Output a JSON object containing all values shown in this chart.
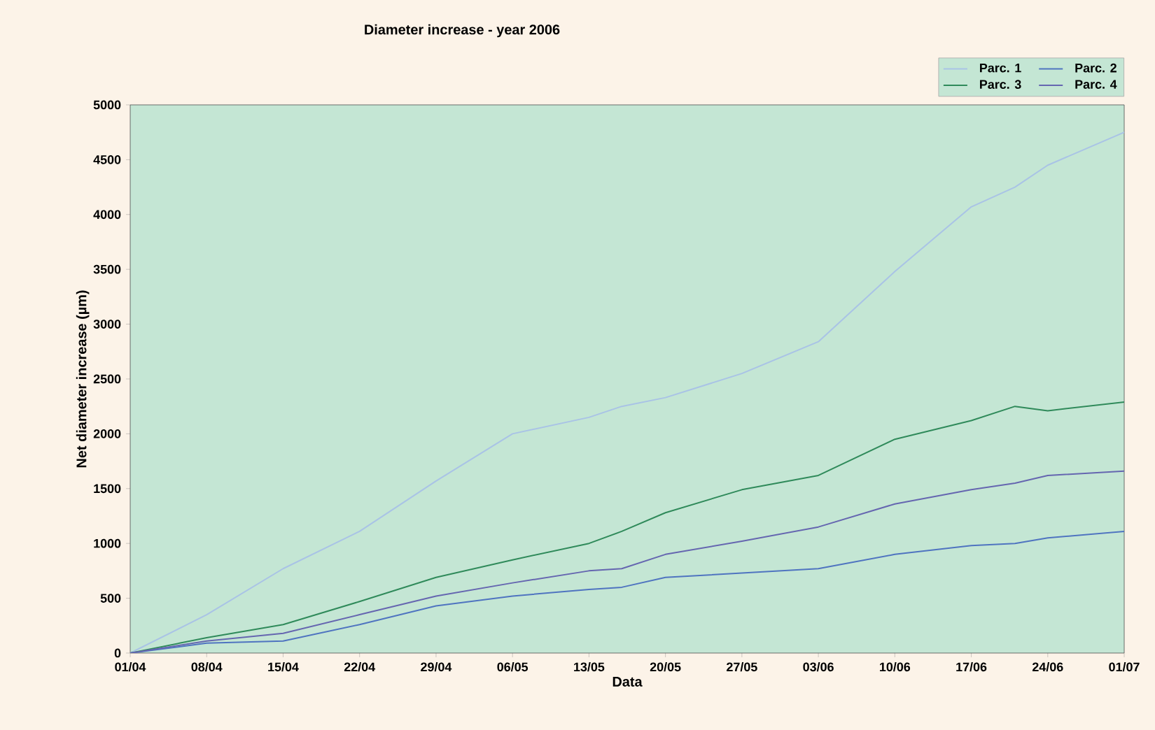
{
  "chart_data": {
    "type": "line",
    "title": "Diameter increase - year 2006",
    "xlabel": "Data",
    "ylabel": "Net diameter increase (µm)",
    "x": [
      "2006-04-01",
      "2006-04-08",
      "2006-04-15",
      "2006-04-22",
      "2006-04-29",
      "2006-05-06",
      "2006-05-13",
      "2006-05-16",
      "2006-05-20",
      "2006-05-27",
      "2006-06-03",
      "2006-06-10",
      "2006-06-17",
      "2006-06-21",
      "2006-06-24",
      "2006-07-01"
    ],
    "series": [
      {
        "name": "Parc. 1",
        "color": "#a9c3e6",
        "values": [
          0,
          350,
          770,
          1110,
          1570,
          2000,
          2150,
          2250,
          2330,
          2550,
          2840,
          3480,
          4070,
          4250,
          4450,
          4750
        ]
      },
      {
        "name": "Parc. 2",
        "color": "#4f74c0",
        "values": [
          0,
          90,
          110,
          260,
          430,
          520,
          580,
          600,
          690,
          730,
          770,
          900,
          980,
          1000,
          1050,
          1110
        ]
      },
      {
        "name": "Parc. 3",
        "color": "#2f8a5a",
        "values": [
          0,
          140,
          260,
          470,
          690,
          850,
          1000,
          1110,
          1280,
          1490,
          1620,
          1950,
          2120,
          2250,
          2210,
          2290
        ]
      },
      {
        "name": "Parc. 4",
        "color": "#6566b0",
        "values": [
          0,
          110,
          180,
          350,
          520,
          640,
          750,
          770,
          900,
          1020,
          1150,
          1360,
          1490,
          1550,
          1620,
          1660
        ]
      }
    ],
    "xlim": [
      "2006-04-01",
      "2006-07-01"
    ],
    "xticks": [
      {
        "value": "2006-04-01",
        "label": "01/04"
      },
      {
        "value": "2006-04-08",
        "label": "08/04"
      },
      {
        "value": "2006-04-15",
        "label": "15/04"
      },
      {
        "value": "2006-04-22",
        "label": "22/04"
      },
      {
        "value": "2006-04-29",
        "label": "29/04"
      },
      {
        "value": "2006-05-06",
        "label": "06/05"
      },
      {
        "value": "2006-05-13",
        "label": "13/05"
      },
      {
        "value": "2006-05-20",
        "label": "20/05"
      },
      {
        "value": "2006-05-27",
        "label": "27/05"
      },
      {
        "value": "2006-06-03",
        "label": "03/06"
      },
      {
        "value": "2006-06-10",
        "label": "10/06"
      },
      {
        "value": "2006-06-17",
        "label": "17/06"
      },
      {
        "value": "2006-06-24",
        "label": "24/06"
      },
      {
        "value": "2006-07-01",
        "label": "01/07"
      }
    ],
    "ylim": [
      0,
      5000
    ],
    "yticks": [
      0,
      500,
      1000,
      1500,
      2000,
      2500,
      3000,
      3500,
      4000,
      4500,
      5000
    ],
    "grid": false,
    "legend": "top right"
  }
}
